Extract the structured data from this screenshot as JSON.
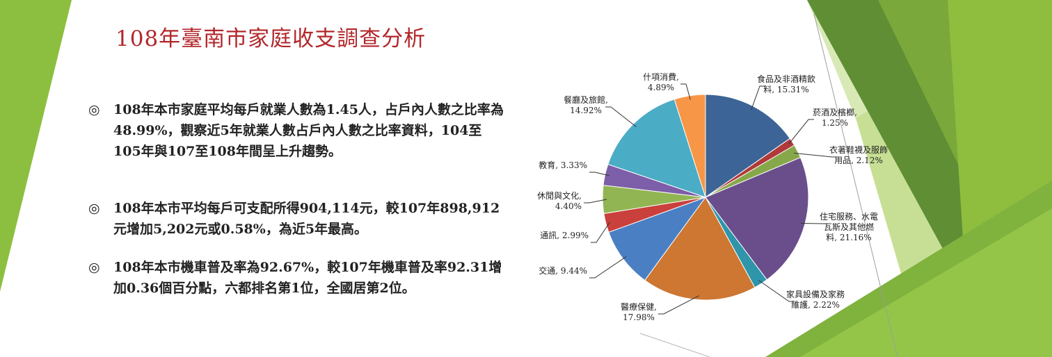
{
  "slide": {
    "title": "108年臺南市家庭收支調查分析",
    "bullet_mark": "◎",
    "bullets": [
      "108年本市家庭平均每戶就業人數為1.45人，占戶內人數之比率為48.99%，觀察近5年就業人數占戶內人數之比率資料，104至105年與107至108年間呈上升趨勢。",
      "108年本市平均每戶可支配所得904,114元，較107年898,912元增加5,202元或0.58%，為近5年最高。",
      "108年本市機車普及率為92.67%，較107年機車普及率92.31增加0.36個百分點，六都排名第1位，全國居第2位。"
    ],
    "theme_colors": {
      "title": "#b2272b",
      "green_light": "#9bc741",
      "green_mid": "#7aa83a",
      "green_dark": "#4f7f2a"
    }
  },
  "chart_data": {
    "type": "pie",
    "title": "",
    "slices": [
      {
        "label": [
          "食品及非酒精飲",
          "料, 15.31%"
        ],
        "value": 15.31,
        "color": "#3c6496"
      },
      {
        "label": [
          "菸酒及檳榔,",
          "1.25%"
        ],
        "value": 1.25,
        "color": "#b03a3a"
      },
      {
        "label": [
          "衣著鞋襪及服飾",
          "用品, 2.12%"
        ],
        "value": 2.12,
        "color": "#86a84a"
      },
      {
        "label": [
          "住宅服務、水電",
          "瓦斯及其他燃",
          "料, 21.16%"
        ],
        "value": 21.16,
        "color": "#6a4e8c"
      },
      {
        "label": [
          "家具設備及家務",
          "維護, 2.22%"
        ],
        "value": 2.22,
        "color": "#2f95aa"
      },
      {
        "label": [
          "醫療保健,",
          "17.98%"
        ],
        "value": 17.98,
        "color": "#cd7733"
      },
      {
        "label": [
          "交通, 9.44%"
        ],
        "value": 9.44,
        "color": "#4a7fc4"
      },
      {
        "label": [
          "通訊, 2.99%"
        ],
        "value": 2.99,
        "color": "#c9403c"
      },
      {
        "label": [
          "休閒與文化,",
          "4.40%"
        ],
        "value": 4.4,
        "color": "#92b553"
      },
      {
        "label": [
          "教育, 3.33%"
        ],
        "value": 3.33,
        "color": "#7d5ea8"
      },
      {
        "label": [
          "餐廳及旅館,",
          "14.92%"
        ],
        "value": 14.92,
        "color": "#4bacc6"
      },
      {
        "label": [
          "什項消費,",
          "4.89%"
        ],
        "value": 4.89,
        "color": "#f79646"
      }
    ]
  }
}
